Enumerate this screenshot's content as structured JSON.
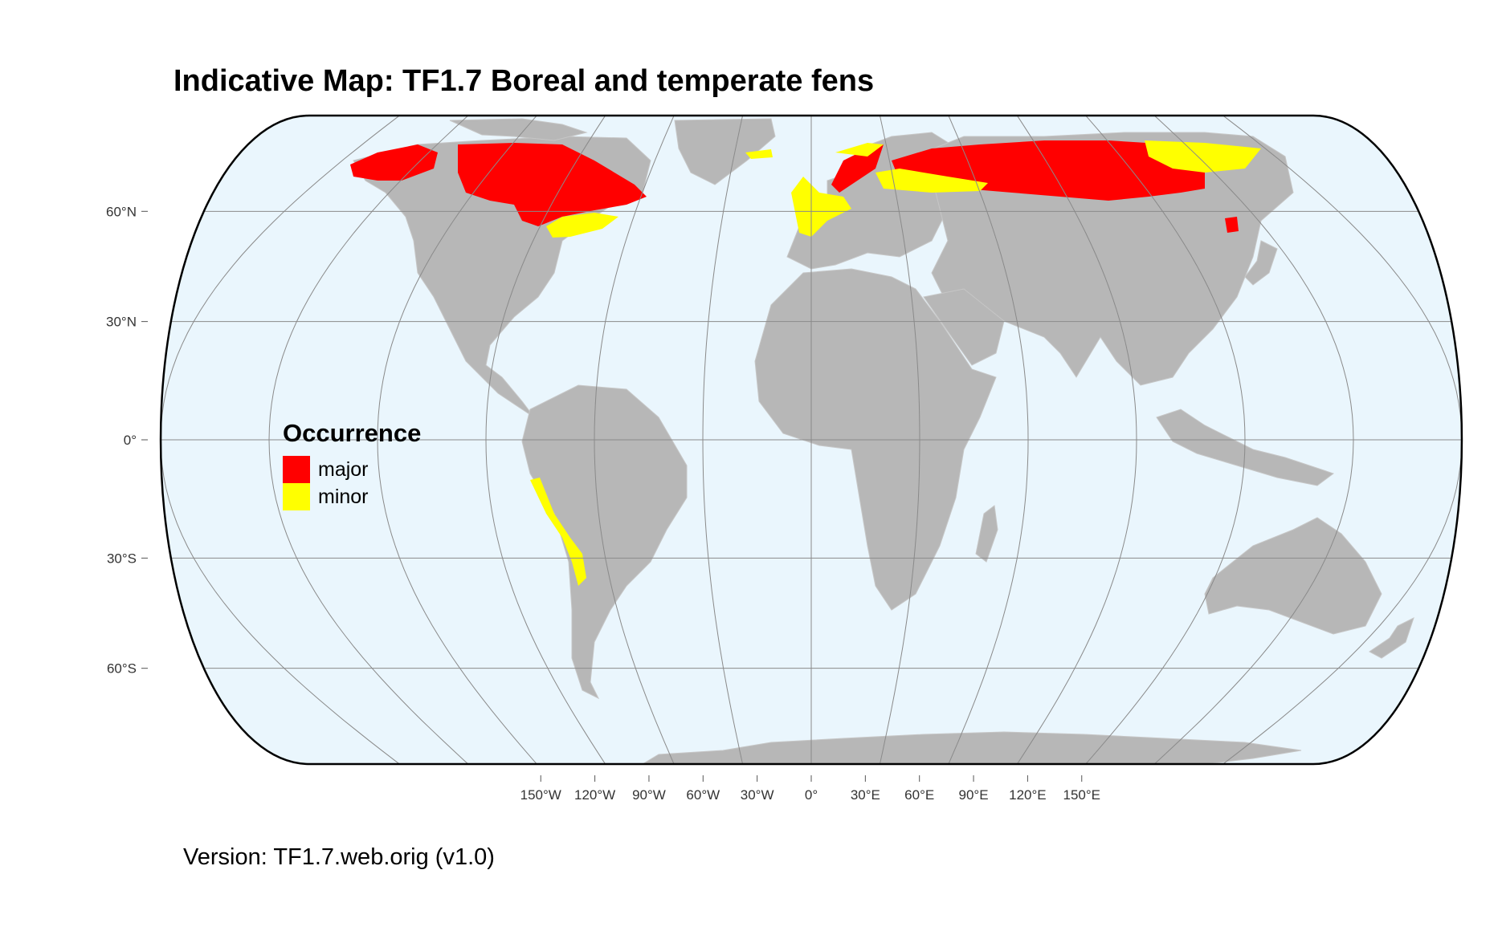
{
  "title": "Indicative Map: TF1.7 Boreal and temperate fens",
  "version": "Version: TF1.7.web.orig (v1.0)",
  "legend": {
    "title": "Occurrence",
    "items": [
      {
        "label": "major",
        "color": "#ff0000"
      },
      {
        "label": "minor",
        "color": "#ffff00"
      }
    ]
  },
  "axes": {
    "lat_ticks": [
      {
        "value": 60,
        "label": "60°N"
      },
      {
        "value": 30,
        "label": "30°N"
      },
      {
        "value": 0,
        "label": "0°"
      },
      {
        "value": -30,
        "label": "30°S"
      },
      {
        "value": -60,
        "label": "60°S"
      }
    ],
    "lon_ticks": [
      {
        "value": -150,
        "label": "150°W"
      },
      {
        "value": -120,
        "label": "120°W"
      },
      {
        "value": -90,
        "label": "90°W"
      },
      {
        "value": -60,
        "label": "60°W"
      },
      {
        "value": -30,
        "label": "30°W"
      },
      {
        "value": 0,
        "label": "0°"
      },
      {
        "value": 30,
        "label": "30°E"
      },
      {
        "value": 60,
        "label": "60°E"
      },
      {
        "value": 90,
        "label": "90°E"
      },
      {
        "value": 120,
        "label": "120°E"
      },
      {
        "value": 150,
        "label": "150°E"
      }
    ]
  },
  "colors": {
    "ocean": "#eaf6fd",
    "land": "#b7b7b7",
    "graticule": "#8a8a8a",
    "outline": "#000000"
  }
}
